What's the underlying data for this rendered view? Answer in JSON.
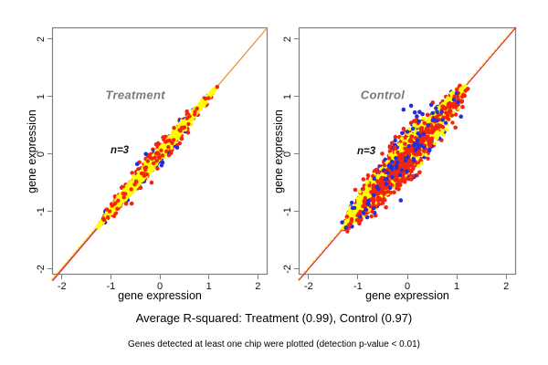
{
  "page": {
    "background": "#ffffff",
    "caption": "Average R-squared: Treatment (0.99), Control (0.97)",
    "footnote": "Genes detected at least one chip were plotted (detection p-value < 0.01)"
  },
  "chart_data": [
    {
      "type": "scatter",
      "title": "Treatment",
      "annotation": "n=3",
      "xlabel": "gene expression",
      "ylabel": "gene expression",
      "xlim": [
        -2.2,
        2.2
      ],
      "ylim": [
        -2.1,
        2.2
      ],
      "xticks": [
        "-2",
        "-1",
        "0",
        "1",
        "2"
      ],
      "yticks": [
        "-2",
        "-1",
        "0",
        "1",
        "2"
      ],
      "xtick_values": [
        -2,
        -1,
        0,
        1,
        2
      ],
      "ytick_values": [
        -2,
        -1,
        0,
        1,
        2
      ],
      "grid": false,
      "legend": "none",
      "r_squared": 0.99,
      "frame_color": "#7e7e7e",
      "title_color": "#7a7a7a",
      "title_pos": [
        -0.5,
        1.03
      ],
      "annotation_pos": [
        -0.82,
        0.06
      ],
      "identity_line": {
        "desc": "y = x reference line",
        "segments": [
          {
            "from": -2.2,
            "to": 2.2,
            "color": "#e49636",
            "offset": 0
          },
          {
            "from": -2.2,
            "to": -0.95,
            "color": "#d42a5a",
            "offset": 0.5
          },
          {
            "from": -2.2,
            "to": -0.95,
            "color": "#ffee00",
            "offset": -0.8,
            "dash": "2.5,2"
          }
        ]
      },
      "cloud": {
        "desc": "dense spindle of points along y=x, range about -1.25 to 1.15",
        "extent": [
          -1.27,
          1.17
        ],
        "center_t": -0.2,
        "sd_t": 0.6,
        "layers": [
          {
            "name": "red-outliers",
            "color": "#f3250f",
            "n": 300,
            "sd": 0.075,
            "r": 2.3,
            "seed": 7
          },
          {
            "name": "blue-outliers",
            "color": "#2430d6",
            "n": 45,
            "sd": 0.09,
            "r": 2.3,
            "seed": 8
          },
          {
            "name": "yellow-core",
            "color": "#ffff00",
            "n": 1600,
            "sd": 0.034,
            "r": 2.1,
            "seed": 9
          },
          {
            "name": "red-sprinkle",
            "color": "#f3250f",
            "n": 60,
            "sd": 0.055,
            "r": 2.2,
            "seed": 10
          }
        ]
      }
    },
    {
      "type": "scatter",
      "title": "Control",
      "annotation": "n=3",
      "xlabel": "gene expression",
      "ylabel": "gene expression",
      "xlim": [
        -2.2,
        2.2
      ],
      "ylim": [
        -2.1,
        2.2
      ],
      "xticks": [
        "-2",
        "-1",
        "0",
        "1",
        "2"
      ],
      "yticks": [
        "-2",
        "-1",
        "0",
        "1",
        "2"
      ],
      "xtick_values": [
        -2,
        -1,
        0,
        1,
        2
      ],
      "ytick_values": [
        -2,
        -1,
        0,
        1,
        2
      ],
      "grid": false,
      "legend": "none",
      "r_squared": 0.97,
      "frame_color": "#7e7e7e",
      "title_color": "#7a7a7a",
      "title_pos": [
        -0.5,
        1.03
      ],
      "annotation_pos": [
        -0.83,
        0.04
      ],
      "identity_line": {
        "desc": "y = x reference line",
        "segments": [
          {
            "from": -2.2,
            "to": 2.2,
            "color": "#d42a5a",
            "offset": 0
          },
          {
            "from": -2.2,
            "to": 2.2,
            "color": "#ffee00",
            "offset": -1,
            "dash": "2.5,2.5"
          }
        ]
      },
      "cloud": {
        "desc": "wide spindle of points along y=x, range about -1.3 to 1.18",
        "extent": [
          -1.3,
          1.18
        ],
        "center_t": -0.15,
        "sd_t": 0.6,
        "layers": [
          {
            "name": "red-outliers",
            "color": "#f3250f",
            "n": 600,
            "sd": 0.16,
            "r": 2.3,
            "seed": 21
          },
          {
            "name": "blue-outliers",
            "color": "#2430d6",
            "n": 160,
            "sd": 0.19,
            "r": 2.3,
            "seed": 22
          },
          {
            "name": "yellow-core",
            "color": "#ffff00",
            "n": 1900,
            "sd": 0.095,
            "r": 2.1,
            "seed": 23
          },
          {
            "name": "red-band",
            "color": "#f3250f",
            "n": 450,
            "sd": 0.11,
            "r": 2.2,
            "seed": 24,
            "bias": 0.05
          },
          {
            "name": "blue-sprinkle",
            "color": "#2430d6",
            "n": 70,
            "sd": 0.13,
            "r": 2.2,
            "seed": 25
          }
        ]
      }
    }
  ]
}
